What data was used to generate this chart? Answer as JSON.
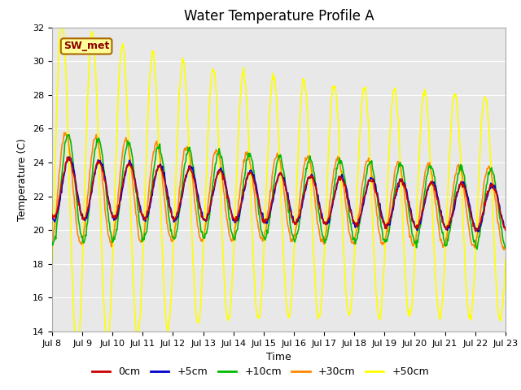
{
  "title": "Water Temperature Profile A",
  "xlabel": "Time",
  "ylabel": "Temperature (C)",
  "ylim": [
    14,
    32
  ],
  "x_tick_labels": [
    "Jul 8",
    "Jul 9",
    "Jul 10",
    "Jul 11",
    "Jul 12",
    "Jul 13",
    "Jul 14",
    "Jul 15",
    "Jul 16",
    "Jul 17",
    "Jul 18",
    "Jul 19",
    "Jul 20",
    "Jul 21",
    "Jul 22",
    "Jul 23"
  ],
  "series_labels": [
    "0cm",
    "+5cm",
    "+10cm",
    "+30cm",
    "+50cm"
  ],
  "series_colors": [
    "#cc0000",
    "#0000cc",
    "#00bb00",
    "#ff8800",
    "#ffff00"
  ],
  "annotation_text": "SW_met",
  "annotation_bg": "#ffff99",
  "annotation_border": "#aa6600",
  "annotation_text_color": "#880000",
  "fig_bg": "#ffffff",
  "plot_bg": "#e8e8e8",
  "grid_color": "#ffffff",
  "title_fontsize": 12,
  "axis_fontsize": 9,
  "tick_fontsize": 8,
  "legend_fontsize": 9,
  "linewidth": 1.2
}
